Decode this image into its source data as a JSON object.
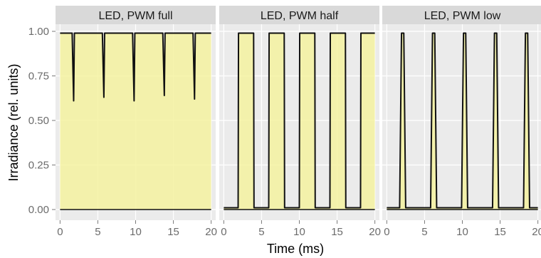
{
  "colors": {
    "panel_bg": "#ebebeb",
    "strip_bg": "#d9d9d9",
    "grid_major": "#ffffff",
    "area_fill": "#f4f2a0",
    "line": "#111111"
  },
  "chart_data": {
    "type": "area",
    "xlabel": "Time (ms)",
    "ylabel": "Irradiance (rel. units)",
    "xlim": [
      -0.6,
      20.6
    ],
    "ylim": [
      -0.06,
      1.04
    ],
    "xticks": [
      0,
      5,
      10,
      15,
      20
    ],
    "xtick_labels": [
      "0",
      "5",
      "10",
      "15",
      "20"
    ],
    "yticks": [
      0.0,
      0.25,
      0.5,
      0.75,
      1.0
    ],
    "ytick_labels": [
      "0.00",
      "0.25",
      "0.50",
      "0.75",
      "1.00"
    ],
    "grid": true,
    "baseline_x_range": [
      0,
      20
    ],
    "panels": [
      {
        "title": "LED, PWM full",
        "x": [
          0,
          1.6,
          1.8,
          1.9,
          2.0,
          5.6,
          5.8,
          5.9,
          6.0,
          9.6,
          9.8,
          9.9,
          10.0,
          13.6,
          13.8,
          13.9,
          14.0,
          17.6,
          17.8,
          17.9,
          18.0,
          20
        ],
        "y": [
          0.99,
          0.99,
          0.61,
          0.99,
          0.99,
          0.99,
          0.63,
          0.99,
          0.99,
          0.99,
          0.61,
          0.99,
          0.99,
          0.99,
          0.64,
          0.99,
          0.99,
          0.99,
          0.62,
          0.99,
          0.99,
          0.99
        ]
      },
      {
        "title": "LED, PWM half",
        "x": [
          0,
          1.9,
          1.95,
          3.95,
          4.0,
          5.95,
          6.0,
          8.0,
          8.05,
          10.0,
          10.05,
          12.05,
          12.1,
          14.05,
          14.1,
          16.1,
          16.15,
          18.1,
          18.15,
          20
        ],
        "y": [
          0.01,
          0.01,
          0.99,
          0.99,
          0.01,
          0.01,
          0.99,
          0.99,
          0.01,
          0.01,
          0.99,
          0.99,
          0.01,
          0.01,
          0.99,
          0.99,
          0.01,
          0.01,
          0.99,
          0.99
        ]
      },
      {
        "title": "LED, PWM low",
        "x": [
          0,
          1.7,
          1.95,
          2.25,
          2.5,
          5.8,
          6.05,
          6.35,
          6.6,
          9.9,
          10.15,
          10.45,
          10.7,
          14.0,
          14.25,
          14.55,
          14.8,
          18.1,
          18.35,
          18.65,
          18.9,
          20
        ],
        "y": [
          0.01,
          0.01,
          0.99,
          0.99,
          0.01,
          0.01,
          0.99,
          0.99,
          0.01,
          0.01,
          0.99,
          0.99,
          0.01,
          0.01,
          0.99,
          0.99,
          0.01,
          0.01,
          0.99,
          0.99,
          0.01,
          0.01
        ]
      }
    ]
  }
}
